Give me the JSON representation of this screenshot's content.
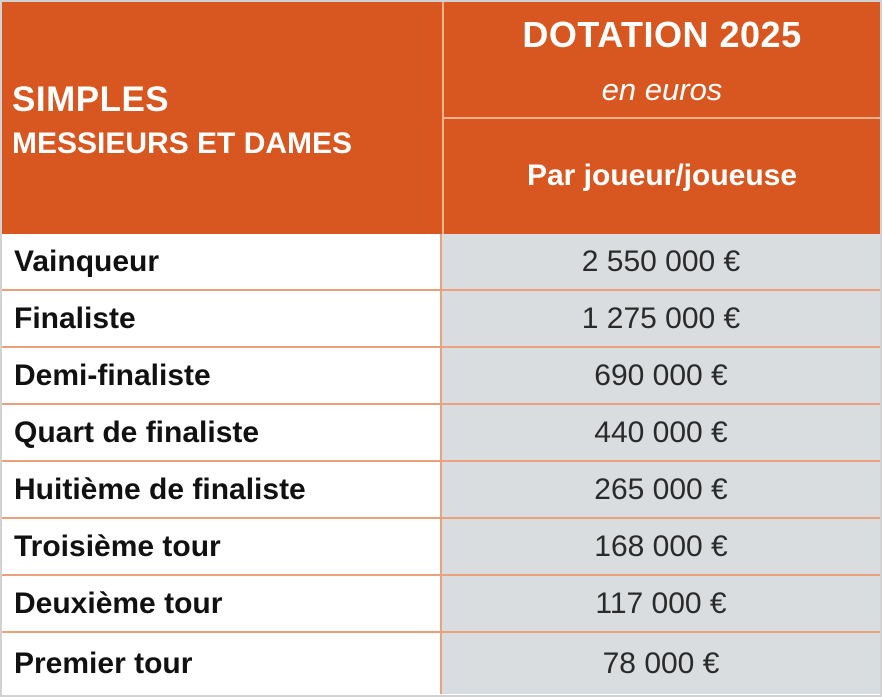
{
  "header": {
    "left_title": "SIMPLES",
    "left_subtitle": "MESSIEURS ET DAMES",
    "right_title": "DOTATION 2025",
    "right_unit": "en euros",
    "right_subtitle": "Par joueur/joueuse"
  },
  "colors": {
    "header_bg": "#d8561f",
    "value_bg": "#d9dde0",
    "divider": "#eba27c"
  },
  "rows": [
    {
      "label": "Vainqueur",
      "value": "2 550 000 €"
    },
    {
      "label": "Finaliste",
      "value": "1 275 000 €"
    },
    {
      "label": "Demi-finaliste",
      "value": "690 000 €"
    },
    {
      "label": "Quart de finaliste",
      "value": "440 000 €"
    },
    {
      "label": "Huitième de finaliste",
      "value": "265 000 €"
    },
    {
      "label": "Troisième tour",
      "value": "168 000 €"
    },
    {
      "label": "Deuxième tour",
      "value": "117 000 €"
    },
    {
      "label": "Premier tour",
      "value": "78 000 €"
    }
  ]
}
